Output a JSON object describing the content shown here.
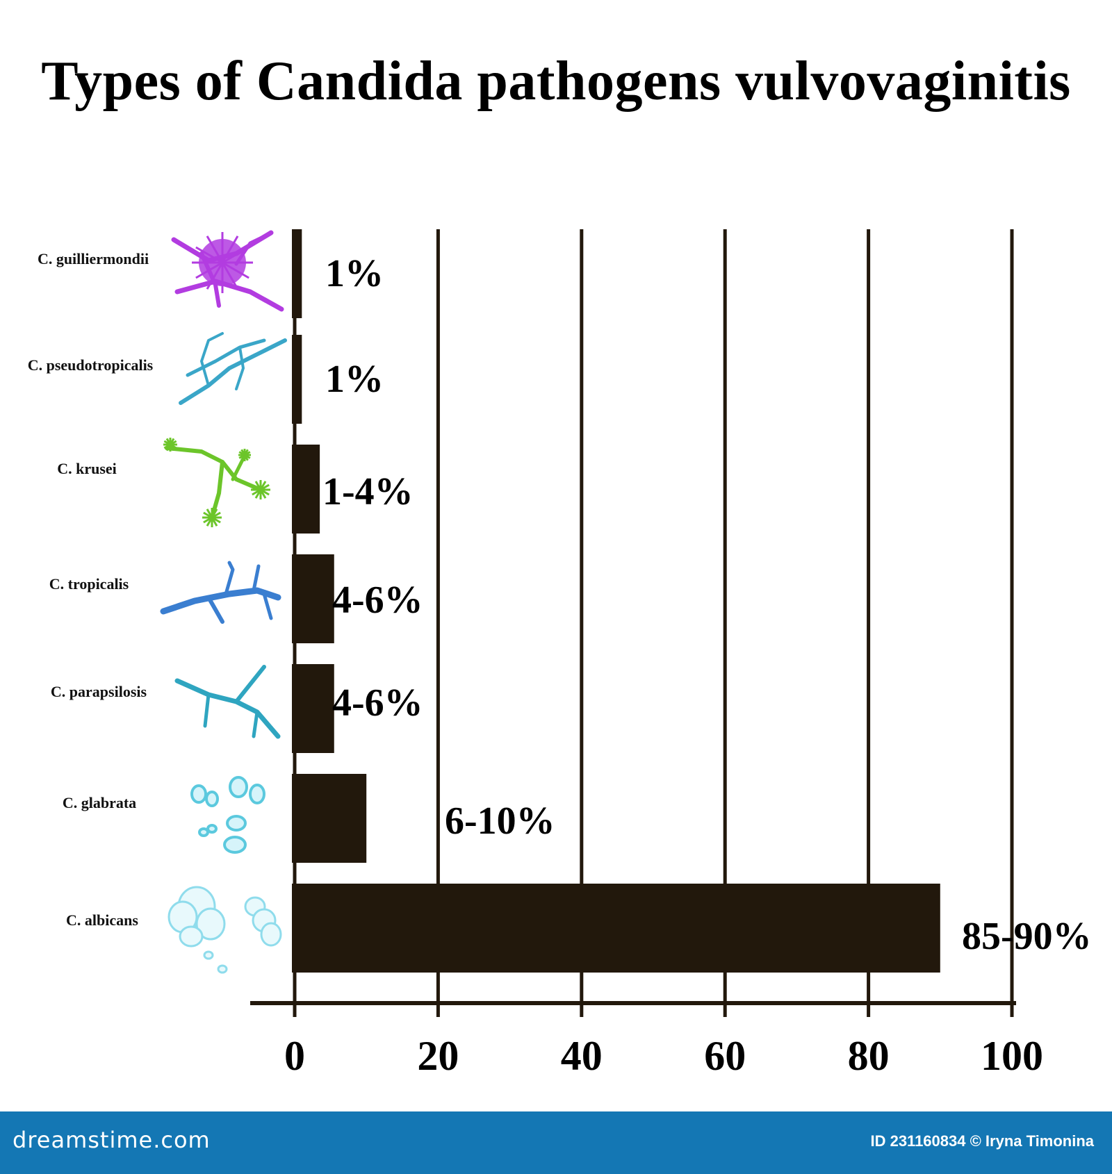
{
  "colors": {
    "bar": "#22180c",
    "grid": "#22180c",
    "footer": "#1477b4"
  },
  "chart_data": {
    "type": "bar",
    "orientation": "horizontal",
    "title": "Types of Candida pathogens vulvovaginitis",
    "xlabel": "",
    "ylabel": "",
    "xlim": [
      0,
      100
    ],
    "xticks": [
      "0",
      "20",
      "40",
      "60",
      "80",
      "100"
    ],
    "grid": true,
    "categories": [
      "C. guilliermondii",
      "C. pseudotropicalis",
      "C. krusei",
      "C. tropicalis",
      "C. parapsilosis",
      "C. glabrata",
      "C. albicans"
    ],
    "values": [
      1,
      1,
      3.5,
      5.5,
      5.5,
      10,
      90
    ],
    "data_labels": [
      "1%",
      "1%",
      "1-4%",
      "4-6%",
      "4-6%",
      "6-10%",
      "85-90%"
    ],
    "illustrations": [
      {
        "name": "guilliermondii-illustration",
        "color": "#b23ce0"
      },
      {
        "name": "pseudotropicalis-illustration",
        "color": "#3aa6c8"
      },
      {
        "name": "krusei-illustration",
        "color": "#6cc52a"
      },
      {
        "name": "tropicalis-illustration",
        "color": "#3a7ed0"
      },
      {
        "name": "parapsilosis-illustration",
        "color": "#2fa5c0"
      },
      {
        "name": "glabrata-illustration",
        "color": "#5bc9de"
      },
      {
        "name": "albicans-illustration",
        "color": "#8fdcec"
      }
    ]
  },
  "footer": {
    "brand": "dreamstime.com",
    "credit": "ID 231160834 © Iryna Timonina"
  }
}
